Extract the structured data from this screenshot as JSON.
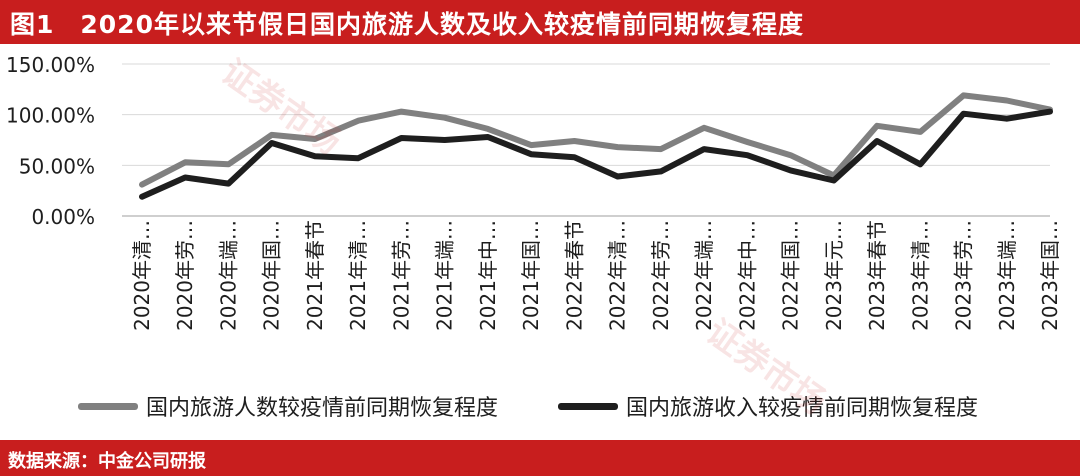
{
  "header": {
    "title": "图1　2020年以来节假日国内旅游人数及收入较疫情前同期恢复程度"
  },
  "footer": {
    "source": "数据来源：中金公司研报"
  },
  "watermark": {
    "text": "证券市场"
  },
  "colors": {
    "brand_red": "#c81e1e",
    "series1": "#808080",
    "series2": "#1e1e1e"
  },
  "chart_data": {
    "type": "line",
    "title": "2020年以来节假日国内旅游人数及收入较疫情前同期恢复程度",
    "xlabel": "",
    "ylabel": "",
    "ylim": [
      0,
      150
    ],
    "yticks": [
      "0.00%",
      "50.00%",
      "100.00%",
      "150.00%"
    ],
    "grid": "horizontal",
    "legend_position": "bottom",
    "categories": [
      "2020年清…",
      "2020年劳…",
      "2020年端…",
      "2020年国…",
      "2021年春节",
      "2021年清…",
      "2021年劳…",
      "2021年端…",
      "2021年中…",
      "2021年国…",
      "2022年春节",
      "2022年清…",
      "2022年劳…",
      "2022年端…",
      "2022年中…",
      "2022年国…",
      "2023年元…",
      "2023年春节",
      "2023年清…",
      "2023年劳…",
      "2023年端…",
      "2023年国…"
    ],
    "series": [
      {
        "name": "国内旅游人数较疫情前同期恢复程度",
        "color": "#808080",
        "values": [
          31,
          53,
          51,
          80,
          76,
          94,
          103,
          97,
          86,
          70,
          74,
          68,
          66,
          87,
          73,
          60,
          40,
          89,
          83,
          119,
          114,
          105
        ]
      },
      {
        "name": "国内旅游收入较疫情前同期恢复程度",
        "color": "#1e1e1e",
        "values": [
          19,
          38,
          32,
          72,
          59,
          57,
          77,
          75,
          78,
          61,
          58,
          39,
          44,
          66,
          60,
          45,
          35,
          74,
          51,
          101,
          96,
          103
        ]
      }
    ]
  }
}
